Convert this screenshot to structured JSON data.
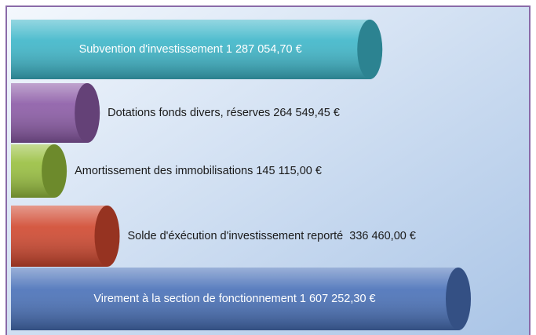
{
  "chart_data": {
    "type": "cylinder-bar",
    "categories": [
      "Subvention d'investissement",
      "Dotations fonds divers, réserves",
      "Amortissement des immobilisations",
      "Solde d'éxécution d'investissement reporté ",
      "Virement à la section de fonctionnement"
    ],
    "values": [
      1287054.7,
      264549.45,
      145115.0,
      336460.0,
      1607252.3
    ],
    "value_labels": [
      "1 287 054,70 €",
      "264 549,45 €",
      "145 115,00 €",
      "336 460,00 €",
      "1 607 252,30 €"
    ],
    "colors": [
      "#3db6c9",
      "#8b5aa6",
      "#98bf3e",
      "#d0472e",
      "#4870b8"
    ]
  }
}
